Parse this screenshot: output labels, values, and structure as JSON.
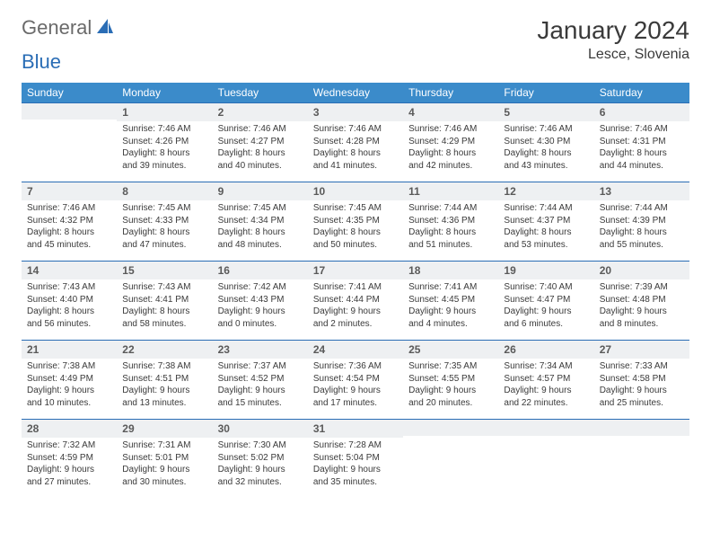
{
  "logo": {
    "general": "General",
    "blue": "Blue"
  },
  "title": "January 2024",
  "location": "Lesce, Slovenia",
  "day_header_bg": "#3b8bca",
  "day_header_fg": "#ffffff",
  "daynum_bg": "#eef0f2",
  "border_color": "#2a6db5",
  "days": [
    "Sunday",
    "Monday",
    "Tuesday",
    "Wednesday",
    "Thursday",
    "Friday",
    "Saturday"
  ],
  "weeks": [
    [
      {
        "num": "",
        "sunrise": "",
        "sunset": "",
        "daylight": ""
      },
      {
        "num": "1",
        "sunrise": "Sunrise: 7:46 AM",
        "sunset": "Sunset: 4:26 PM",
        "daylight": "Daylight: 8 hours and 39 minutes."
      },
      {
        "num": "2",
        "sunrise": "Sunrise: 7:46 AM",
        "sunset": "Sunset: 4:27 PM",
        "daylight": "Daylight: 8 hours and 40 minutes."
      },
      {
        "num": "3",
        "sunrise": "Sunrise: 7:46 AM",
        "sunset": "Sunset: 4:28 PM",
        "daylight": "Daylight: 8 hours and 41 minutes."
      },
      {
        "num": "4",
        "sunrise": "Sunrise: 7:46 AM",
        "sunset": "Sunset: 4:29 PM",
        "daylight": "Daylight: 8 hours and 42 minutes."
      },
      {
        "num": "5",
        "sunrise": "Sunrise: 7:46 AM",
        "sunset": "Sunset: 4:30 PM",
        "daylight": "Daylight: 8 hours and 43 minutes."
      },
      {
        "num": "6",
        "sunrise": "Sunrise: 7:46 AM",
        "sunset": "Sunset: 4:31 PM",
        "daylight": "Daylight: 8 hours and 44 minutes."
      }
    ],
    [
      {
        "num": "7",
        "sunrise": "Sunrise: 7:46 AM",
        "sunset": "Sunset: 4:32 PM",
        "daylight": "Daylight: 8 hours and 45 minutes."
      },
      {
        "num": "8",
        "sunrise": "Sunrise: 7:45 AM",
        "sunset": "Sunset: 4:33 PM",
        "daylight": "Daylight: 8 hours and 47 minutes."
      },
      {
        "num": "9",
        "sunrise": "Sunrise: 7:45 AM",
        "sunset": "Sunset: 4:34 PM",
        "daylight": "Daylight: 8 hours and 48 minutes."
      },
      {
        "num": "10",
        "sunrise": "Sunrise: 7:45 AM",
        "sunset": "Sunset: 4:35 PM",
        "daylight": "Daylight: 8 hours and 50 minutes."
      },
      {
        "num": "11",
        "sunrise": "Sunrise: 7:44 AM",
        "sunset": "Sunset: 4:36 PM",
        "daylight": "Daylight: 8 hours and 51 minutes."
      },
      {
        "num": "12",
        "sunrise": "Sunrise: 7:44 AM",
        "sunset": "Sunset: 4:37 PM",
        "daylight": "Daylight: 8 hours and 53 minutes."
      },
      {
        "num": "13",
        "sunrise": "Sunrise: 7:44 AM",
        "sunset": "Sunset: 4:39 PM",
        "daylight": "Daylight: 8 hours and 55 minutes."
      }
    ],
    [
      {
        "num": "14",
        "sunrise": "Sunrise: 7:43 AM",
        "sunset": "Sunset: 4:40 PM",
        "daylight": "Daylight: 8 hours and 56 minutes."
      },
      {
        "num": "15",
        "sunrise": "Sunrise: 7:43 AM",
        "sunset": "Sunset: 4:41 PM",
        "daylight": "Daylight: 8 hours and 58 minutes."
      },
      {
        "num": "16",
        "sunrise": "Sunrise: 7:42 AM",
        "sunset": "Sunset: 4:43 PM",
        "daylight": "Daylight: 9 hours and 0 minutes."
      },
      {
        "num": "17",
        "sunrise": "Sunrise: 7:41 AM",
        "sunset": "Sunset: 4:44 PM",
        "daylight": "Daylight: 9 hours and 2 minutes."
      },
      {
        "num": "18",
        "sunrise": "Sunrise: 7:41 AM",
        "sunset": "Sunset: 4:45 PM",
        "daylight": "Daylight: 9 hours and 4 minutes."
      },
      {
        "num": "19",
        "sunrise": "Sunrise: 7:40 AM",
        "sunset": "Sunset: 4:47 PM",
        "daylight": "Daylight: 9 hours and 6 minutes."
      },
      {
        "num": "20",
        "sunrise": "Sunrise: 7:39 AM",
        "sunset": "Sunset: 4:48 PM",
        "daylight": "Daylight: 9 hours and 8 minutes."
      }
    ],
    [
      {
        "num": "21",
        "sunrise": "Sunrise: 7:38 AM",
        "sunset": "Sunset: 4:49 PM",
        "daylight": "Daylight: 9 hours and 10 minutes."
      },
      {
        "num": "22",
        "sunrise": "Sunrise: 7:38 AM",
        "sunset": "Sunset: 4:51 PM",
        "daylight": "Daylight: 9 hours and 13 minutes."
      },
      {
        "num": "23",
        "sunrise": "Sunrise: 7:37 AM",
        "sunset": "Sunset: 4:52 PM",
        "daylight": "Daylight: 9 hours and 15 minutes."
      },
      {
        "num": "24",
        "sunrise": "Sunrise: 7:36 AM",
        "sunset": "Sunset: 4:54 PM",
        "daylight": "Daylight: 9 hours and 17 minutes."
      },
      {
        "num": "25",
        "sunrise": "Sunrise: 7:35 AM",
        "sunset": "Sunset: 4:55 PM",
        "daylight": "Daylight: 9 hours and 20 minutes."
      },
      {
        "num": "26",
        "sunrise": "Sunrise: 7:34 AM",
        "sunset": "Sunset: 4:57 PM",
        "daylight": "Daylight: 9 hours and 22 minutes."
      },
      {
        "num": "27",
        "sunrise": "Sunrise: 7:33 AM",
        "sunset": "Sunset: 4:58 PM",
        "daylight": "Daylight: 9 hours and 25 minutes."
      }
    ],
    [
      {
        "num": "28",
        "sunrise": "Sunrise: 7:32 AM",
        "sunset": "Sunset: 4:59 PM",
        "daylight": "Daylight: 9 hours and 27 minutes."
      },
      {
        "num": "29",
        "sunrise": "Sunrise: 7:31 AM",
        "sunset": "Sunset: 5:01 PM",
        "daylight": "Daylight: 9 hours and 30 minutes."
      },
      {
        "num": "30",
        "sunrise": "Sunrise: 7:30 AM",
        "sunset": "Sunset: 5:02 PM",
        "daylight": "Daylight: 9 hours and 32 minutes."
      },
      {
        "num": "31",
        "sunrise": "Sunrise: 7:28 AM",
        "sunset": "Sunset: 5:04 PM",
        "daylight": "Daylight: 9 hours and 35 minutes."
      },
      {
        "num": "",
        "sunrise": "",
        "sunset": "",
        "daylight": ""
      },
      {
        "num": "",
        "sunrise": "",
        "sunset": "",
        "daylight": ""
      },
      {
        "num": "",
        "sunrise": "",
        "sunset": "",
        "daylight": ""
      }
    ]
  ]
}
